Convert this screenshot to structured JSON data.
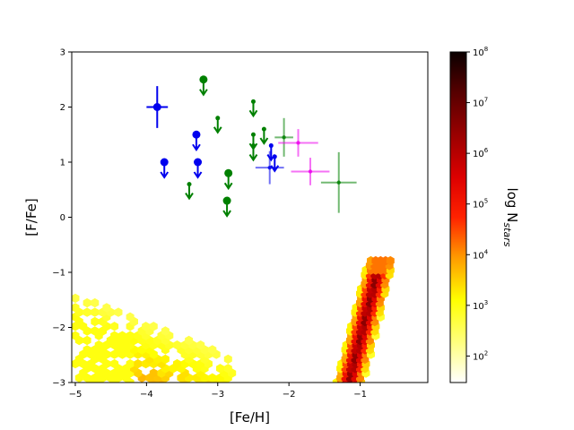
{
  "chart_data": {
    "type": "scatter",
    "xlabel": "[Fe/H]",
    "ylabel": "[F/Fe]",
    "xlim": [
      -5.05,
      -0.05
    ],
    "ylim": [
      -3,
      3
    ],
    "xticks": [
      -5,
      -4,
      -3,
      -2,
      -1
    ],
    "xtick_labels": [
      "−5",
      "−4",
      "−3",
      "−2",
      "−1"
    ],
    "yticks": [
      -3,
      -2,
      -1,
      0,
      1,
      2,
      3
    ],
    "ytick_labels": [
      "−3",
      "−2",
      "−1",
      "0",
      "1",
      "2",
      "3"
    ],
    "grid": false,
    "colorbar": {
      "label": "log N",
      "label_subscript": "stars",
      "scale": "log",
      "range": [
        30,
        100000000
      ],
      "ticks": [
        {
          "value": 100,
          "base": "10",
          "exp": "2"
        },
        {
          "value": 1000,
          "base": "10",
          "exp": "3"
        },
        {
          "value": 10000,
          "base": "10",
          "exp": "4"
        },
        {
          "value": 100000,
          "base": "10",
          "exp": "5"
        },
        {
          "value": 1000000,
          "base": "10",
          "exp": "6"
        },
        {
          "value": 10000000,
          "base": "10",
          "exp": "7"
        },
        {
          "value": 100000000,
          "base": "10",
          "exp": "8"
        }
      ],
      "colormap": "hot_r"
    },
    "series": [
      {
        "color": "#0000ee",
        "points": [
          {
            "x": -3.85,
            "y": 2.0,
            "xerr": 0.15,
            "yerr": 0.38
          },
          {
            "x": -3.3,
            "y": 1.5,
            "upper_limit": true
          },
          {
            "x": -3.75,
            "y": 1.0,
            "upper_limit": true
          },
          {
            "x": -3.28,
            "y": 1.0,
            "upper_limit": true
          },
          {
            "x": -2.25,
            "y": 1.3,
            "upper_limit": true,
            "small": true
          },
          {
            "x": -2.2,
            "y": 1.1,
            "upper_limit": true,
            "small": true
          },
          {
            "x": -2.27,
            "y": 0.9,
            "xerr": 0.2,
            "yerr": 0.3,
            "faint": true
          }
        ]
      },
      {
        "color": "#008000",
        "points": [
          {
            "x": -3.2,
            "y": 2.5,
            "upper_limit": true
          },
          {
            "x": -2.5,
            "y": 2.1,
            "upper_limit": true,
            "small": true
          },
          {
            "x": -2.35,
            "y": 1.6,
            "upper_limit": true,
            "small": true
          },
          {
            "x": -3.0,
            "y": 1.8,
            "upper_limit": true,
            "small": true
          },
          {
            "x": -2.5,
            "y": 1.5,
            "upper_limit": true,
            "small": true
          },
          {
            "x": -2.5,
            "y": 1.3,
            "upper_limit": true,
            "small": true
          },
          {
            "x": -2.85,
            "y": 0.8,
            "upper_limit": true
          },
          {
            "x": -3.4,
            "y": 0.6,
            "upper_limit": true,
            "small": true
          },
          {
            "x": -2.87,
            "y": 0.3,
            "upper_limit": true
          },
          {
            "x": -2.07,
            "y": 1.45,
            "xerr": 0.13,
            "yerr": 0.35,
            "faint": true
          },
          {
            "x": -1.3,
            "y": 0.63,
            "xerr": 0.25,
            "yerr": 0.55,
            "faint": true
          }
        ]
      },
      {
        "color": "#ee00ee",
        "points": [
          {
            "x": -1.87,
            "y": 1.35,
            "xerr": 0.28,
            "yerr": 0.25,
            "faint": true
          },
          {
            "x": -1.7,
            "y": 0.83,
            "xerr": 0.27,
            "yerr": 0.25,
            "faint": true
          }
        ]
      }
    ],
    "hexbin_regions": [
      {
        "x_range": [
          -5.0,
          -2.75
        ],
        "y_range": [
          -3.0,
          -1.4
        ],
        "log_count_max": 4.3,
        "shape": "metal-poor-tail"
      },
      {
        "x_range": [
          -1.4,
          -0.3
        ],
        "y_range": [
          -3.0,
          -0.75
        ],
        "log_count_max": 6.5,
        "shape": "diagonal-band"
      }
    ]
  }
}
